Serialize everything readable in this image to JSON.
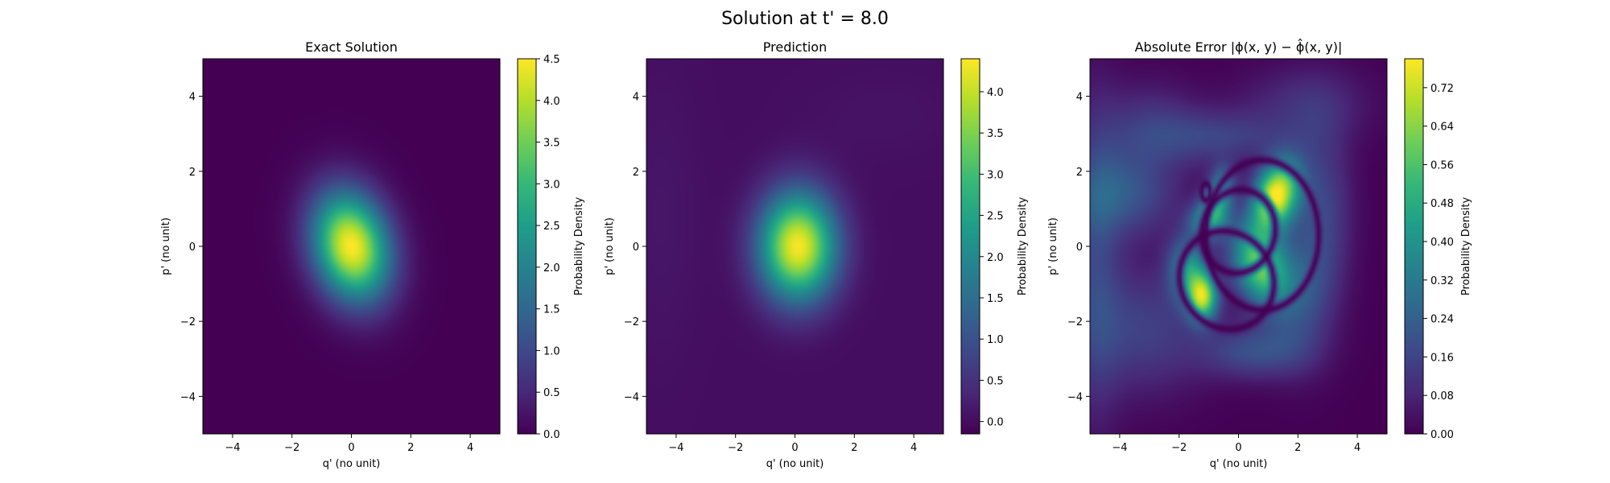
{
  "suptitle": "Solution at t' = 8.0",
  "colors": {
    "viridis": [
      "#440154",
      "#482878",
      "#3e4989",
      "#31688e",
      "#26828e",
      "#1f9e89",
      "#35b779",
      "#6ece58",
      "#b5de2b",
      "#fde725"
    ],
    "background_min": "#440154"
  },
  "chart_data": [
    {
      "type": "heatmap",
      "title": "Exact Solution",
      "xlabel": "q' (no unit)",
      "ylabel": "p' (no unit)",
      "xlim": [
        -5,
        5
      ],
      "ylim": [
        -5,
        5
      ],
      "xticks": [
        -4,
        -2,
        0,
        2,
        4
      ],
      "yticks": [
        -4,
        -2,
        0,
        2,
        4
      ],
      "colorbar": {
        "label": "Probability Density",
        "range": [
          0,
          4.5
        ],
        "ticks": [
          0.0,
          0.5,
          1.0,
          1.5,
          2.0,
          2.5,
          3.0,
          3.5,
          4.0,
          4.5
        ],
        "tick_labels": [
          "0.0",
          "0.5",
          "1.0",
          "1.5",
          "2.0",
          "2.5",
          "3.0",
          "3.5",
          "4.0",
          "4.5"
        ]
      },
      "blobs": [
        {
          "cx": 0.0,
          "cy": 0.0,
          "sx": 0.85,
          "sy": 1.05,
          "rot_deg": 30,
          "amp": 4.5
        }
      ]
    },
    {
      "type": "heatmap",
      "title": "Prediction",
      "xlabel": "q' (no unit)",
      "ylabel": "p' (no unit)",
      "xlim": [
        -5,
        5
      ],
      "ylim": [
        -5,
        5
      ],
      "xticks": [
        -4,
        -2,
        0,
        2,
        4
      ],
      "yticks": [
        -4,
        -2,
        0,
        2,
        4
      ],
      "colorbar": {
        "label": "Probability Density",
        "range": [
          -0.15,
          4.4
        ],
        "ticks": [
          0.0,
          0.5,
          1.0,
          1.5,
          2.0,
          2.5,
          3.0,
          3.5,
          4.0
        ],
        "tick_labels": [
          "0.0",
          "0.5",
          "1.0",
          "1.5",
          "2.0",
          "2.5",
          "3.0",
          "3.5",
          "4.0"
        ]
      },
      "blobs": [
        {
          "cx": 0.1,
          "cy": 0.0,
          "sx": 0.9,
          "sy": 1.0,
          "rot_deg": 0,
          "amp": 4.35
        },
        {
          "cx": -4.5,
          "cy": 0.8,
          "sx": 1.0,
          "sy": 3.0,
          "rot_deg": 0,
          "amp": 0.12
        },
        {
          "cx": 3.0,
          "cy": 3.5,
          "sx": 2.0,
          "sy": 1.0,
          "rot_deg": 0,
          "amp": 0.08
        }
      ]
    },
    {
      "type": "heatmap",
      "title": "Absolute Error |ϕ(x, y) − ϕ̂(x, y)|",
      "xlabel": "q' (no unit)",
      "ylabel": "p' (no unit)",
      "xlim": [
        -5,
        5
      ],
      "ylim": [
        -5,
        5
      ],
      "xticks": [
        -4,
        -2,
        0,
        2,
        4
      ],
      "yticks": [
        -4,
        -2,
        0,
        2,
        4
      ],
      "colorbar": {
        "label": "Probability Density",
        "range": [
          0,
          0.78
        ],
        "ticks": [
          0.0,
          0.08,
          0.16,
          0.24,
          0.32,
          0.4,
          0.48,
          0.56,
          0.64,
          0.72
        ],
        "tick_labels": [
          "0.00",
          "0.08",
          "0.16",
          "0.24",
          "0.32",
          "0.40",
          "0.48",
          "0.56",
          "0.64",
          "0.72"
        ]
      },
      "blobs": [
        {
          "cx": 1.25,
          "cy": 1.35,
          "sx": 0.5,
          "sy": 0.7,
          "rot_deg": -30,
          "amp": 0.78
        },
        {
          "cx": 0.7,
          "cy": -0.5,
          "sx": 0.6,
          "sy": 0.8,
          "rot_deg": 35,
          "amp": 0.58
        },
        {
          "cx": -1.2,
          "cy": -1.35,
          "sx": 0.35,
          "sy": 0.45,
          "rot_deg": 0,
          "amp": 0.62
        },
        {
          "cx": -1.7,
          "cy": -0.6,
          "sx": 0.45,
          "sy": 0.6,
          "rot_deg": 0,
          "amp": 0.38
        },
        {
          "cx": -1.0,
          "cy": 0.7,
          "sx": 0.45,
          "sy": 0.35,
          "rot_deg": 0,
          "amp": 0.4
        },
        {
          "cx": -0.5,
          "cy": 1.6,
          "sx": 0.3,
          "sy": 0.4,
          "rot_deg": 0,
          "amp": 0.3
        },
        {
          "cx": -0.8,
          "cy": 1.2,
          "sx": 0.3,
          "sy": 0.35,
          "rot_deg": 0,
          "amp": 0.25
        },
        {
          "cx": 2.0,
          "cy": -1.3,
          "sx": 0.8,
          "sy": 1.2,
          "rot_deg": 0,
          "amp": 0.18
        },
        {
          "cx": -3.8,
          "cy": 1.4,
          "sx": 1.2,
          "sy": 0.8,
          "rot_deg": 0,
          "amp": 0.2
        },
        {
          "cx": -3.2,
          "cy": -2.2,
          "sx": 1.5,
          "sy": 1.2,
          "rot_deg": 0,
          "amp": 0.15
        },
        {
          "cx": 0.5,
          "cy": -2.8,
          "sx": 1.2,
          "sy": 0.5,
          "rot_deg": 0,
          "amp": 0.18
        },
        {
          "cx": -0.6,
          "cy": 2.9,
          "sx": 1.6,
          "sy": 0.5,
          "rot_deg": 0,
          "amp": 0.14
        },
        {
          "cx": 2.8,
          "cy": 1.0,
          "sx": 0.7,
          "sy": 1.6,
          "rot_deg": 0,
          "amp": 0.16
        },
        {
          "cx": -4.8,
          "cy": -0.3,
          "sx": 0.6,
          "sy": 3.0,
          "rot_deg": 0,
          "amp": 0.14
        },
        {
          "cx": 2.2,
          "cy": 3.8,
          "sx": 1.5,
          "sy": 0.7,
          "rot_deg": 0,
          "amp": 0.1
        },
        {
          "cx": -3.0,
          "cy": 3.2,
          "sx": 1.2,
          "sy": 0.8,
          "rot_deg": 0,
          "amp": 0.12
        }
      ],
      "dark_rings": [
        {
          "cx": 0.0,
          "cy": 0.4,
          "rx": 1.25,
          "ry": 1.1,
          "rot_deg": 15,
          "width": 0.13
        },
        {
          "cx": -0.4,
          "cy": -0.9,
          "rx": 1.6,
          "ry": 1.3,
          "rot_deg": -10,
          "width": 0.12
        },
        {
          "cx": 0.8,
          "cy": 0.3,
          "rx": 1.9,
          "ry": 2.0,
          "rot_deg": 0,
          "width": 0.12
        },
        {
          "cx": -1.1,
          "cy": 1.45,
          "rx": 0.15,
          "ry": 0.22,
          "rot_deg": 0,
          "width": 0.08
        }
      ]
    }
  ]
}
